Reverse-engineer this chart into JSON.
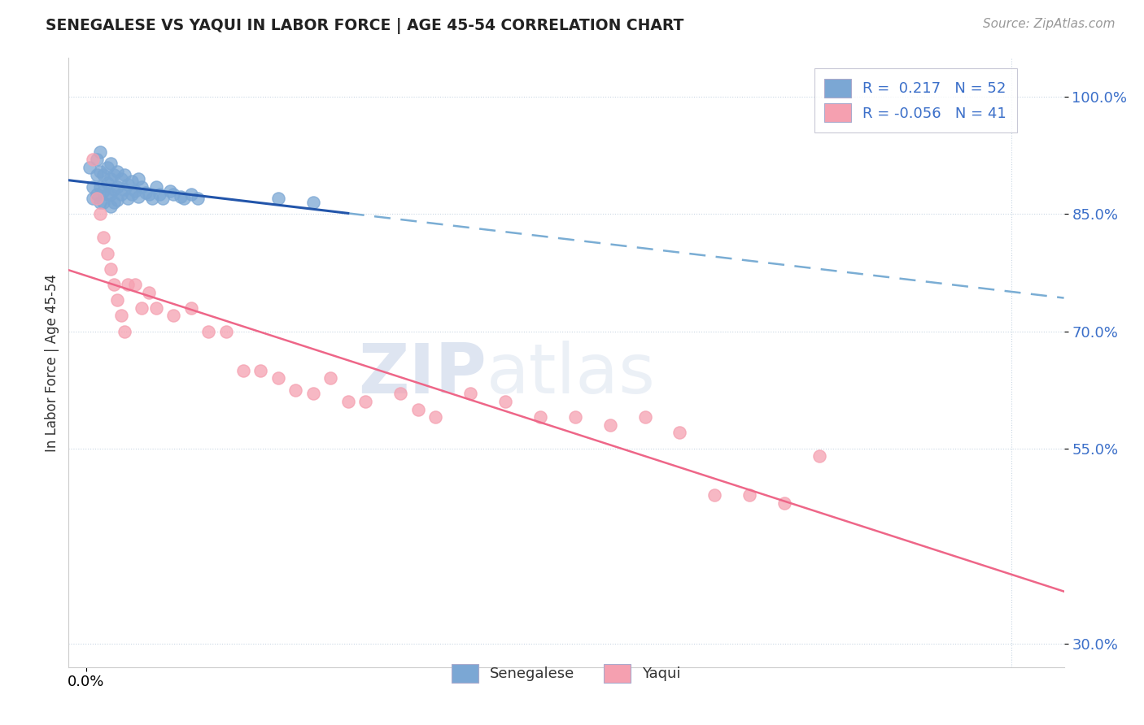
{
  "title": "SENEGALESE VS YAQUI IN LABOR FORCE | AGE 45-54 CORRELATION CHART",
  "source_text": "Source: ZipAtlas.com",
  "ylabel": "In Labor Force | Age 45-54",
  "xlim": [
    -0.005,
    0.28
  ],
  "ylim": [
    0.27,
    1.05
  ],
  "y_ticks": [
    0.3,
    0.55,
    0.7,
    0.85,
    1.0
  ],
  "y_tick_labels": [
    "30.0%",
    "55.0%",
    "70.0%",
    "85.0%",
    "100.0%"
  ],
  "senegalese_color": "#7BA7D4",
  "yaqui_color": "#F5A0B0",
  "senegalese_R": 0.217,
  "senegalese_N": 52,
  "yaqui_R": -0.056,
  "yaqui_N": 41,
  "watermark_zip": "ZIP",
  "watermark_atlas": "atlas",
  "sen_line_color": "#2255AA",
  "sen_dash_color": "#7AADD4",
  "yaq_line_color": "#EE6688",
  "senegalese_x": [
    0.001,
    0.002,
    0.002,
    0.003,
    0.003,
    0.003,
    0.004,
    0.004,
    0.004,
    0.004,
    0.005,
    0.005,
    0.005,
    0.006,
    0.006,
    0.006,
    0.007,
    0.007,
    0.007,
    0.007,
    0.008,
    0.008,
    0.008,
    0.009,
    0.009,
    0.009,
    0.01,
    0.01,
    0.011,
    0.011,
    0.012,
    0.012,
    0.013,
    0.013,
    0.014,
    0.015,
    0.015,
    0.016,
    0.017,
    0.018,
    0.019,
    0.02,
    0.021,
    0.022,
    0.024,
    0.025,
    0.027,
    0.028,
    0.03,
    0.032,
    0.055,
    0.065
  ],
  "senegalese_y": [
    0.91,
    0.885,
    0.87,
    0.92,
    0.9,
    0.875,
    0.93,
    0.905,
    0.885,
    0.865,
    0.9,
    0.88,
    0.865,
    0.91,
    0.89,
    0.875,
    0.915,
    0.895,
    0.875,
    0.86,
    0.9,
    0.882,
    0.865,
    0.905,
    0.885,
    0.868,
    0.895,
    0.875,
    0.9,
    0.882,
    0.888,
    0.87,
    0.892,
    0.875,
    0.88,
    0.895,
    0.872,
    0.885,
    0.878,
    0.875,
    0.87,
    0.885,
    0.875,
    0.87,
    0.88,
    0.875,
    0.872,
    0.87,
    0.875,
    0.87,
    0.87,
    0.865
  ],
  "yaqui_x": [
    0.002,
    0.003,
    0.004,
    0.005,
    0.006,
    0.007,
    0.008,
    0.009,
    0.01,
    0.011,
    0.012,
    0.014,
    0.016,
    0.018,
    0.02,
    0.025,
    0.03,
    0.035,
    0.04,
    0.045,
    0.05,
    0.055,
    0.06,
    0.065,
    0.07,
    0.075,
    0.08,
    0.09,
    0.095,
    0.1,
    0.11,
    0.12,
    0.13,
    0.14,
    0.15,
    0.16,
    0.17,
    0.18,
    0.19,
    0.2,
    0.21
  ],
  "yaqui_y": [
    0.92,
    0.87,
    0.85,
    0.82,
    0.8,
    0.78,
    0.76,
    0.74,
    0.72,
    0.7,
    0.76,
    0.76,
    0.73,
    0.75,
    0.73,
    0.72,
    0.73,
    0.7,
    0.7,
    0.65,
    0.65,
    0.64,
    0.625,
    0.62,
    0.64,
    0.61,
    0.61,
    0.62,
    0.6,
    0.59,
    0.62,
    0.61,
    0.59,
    0.59,
    0.58,
    0.59,
    0.57,
    0.49,
    0.49,
    0.48,
    0.54
  ]
}
